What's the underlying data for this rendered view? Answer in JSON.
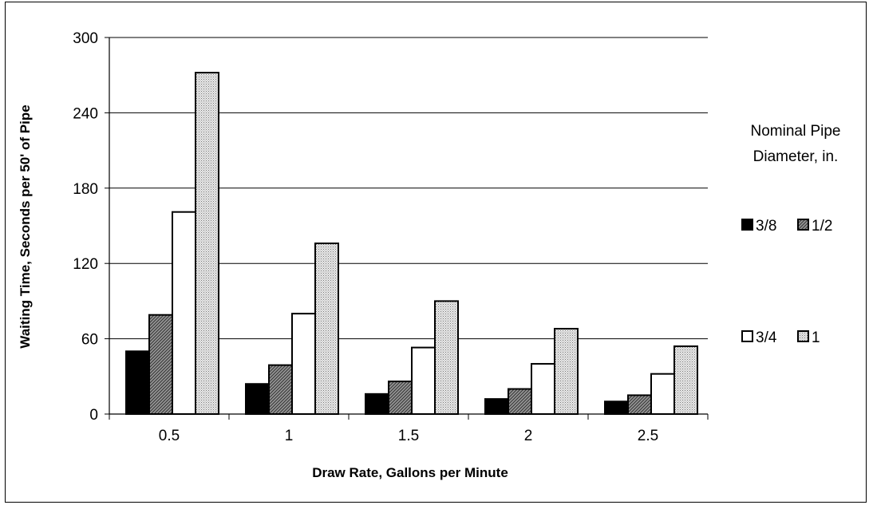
{
  "chart_data": {
    "type": "bar",
    "title": "",
    "xlabel": "Draw Rate, Gallons per Minute",
    "ylabel": "Waiting Time, Seconds per 50' of Pipe",
    "ylim": [
      0,
      300
    ],
    "yticks": [
      "0",
      "60",
      "120",
      "180",
      "240",
      "300"
    ],
    "categories": [
      "0.5",
      "1",
      "1.5",
      "2",
      "2.5"
    ],
    "grid": true,
    "legend_title": [
      "Nominal Pipe",
      "Diameter, in."
    ],
    "legend_position": "right",
    "series": [
      {
        "name": "3/8",
        "fill": "solid",
        "color": "#000000",
        "values": [
          50,
          24,
          16,
          12,
          10
        ]
      },
      {
        "name": "1/2",
        "fill": "crosshatch",
        "color": "#808080",
        "values": [
          79,
          39,
          26,
          20,
          15
        ]
      },
      {
        "name": "3/4",
        "fill": "white",
        "color": "#ffffff",
        "values": [
          161,
          80,
          53,
          40,
          32
        ]
      },
      {
        "name": "1",
        "fill": "dots",
        "color": "#cfcfcf",
        "values": [
          272,
          136,
          90,
          68,
          54
        ]
      }
    ]
  }
}
